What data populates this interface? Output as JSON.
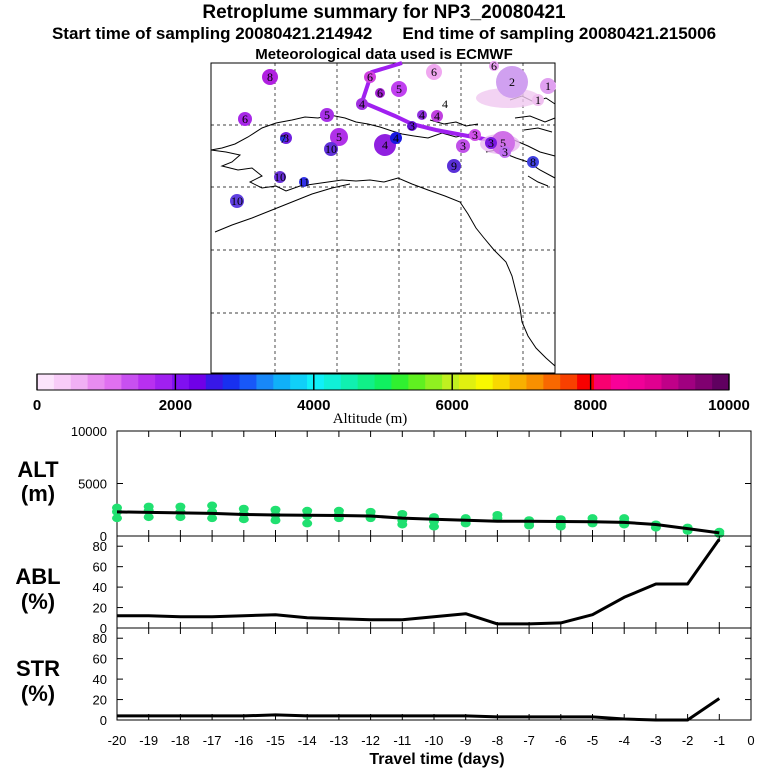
{
  "header": {
    "title": "Retroplume summary for NP3_20080421",
    "start_time": "Start time of sampling 20080421.214942",
    "end_time": "End time of sampling 20080421.215006",
    "met_data": "Meteorological data used is ECMWF"
  },
  "map": {
    "plume_color": "#a020f0",
    "markers": [
      {
        "label": "8",
        "color": "#b020e0"
      },
      {
        "label": "6",
        "color": "#d040e0"
      },
      {
        "label": "6",
        "color": "#f0a8f0"
      },
      {
        "label": "6",
        "color": "#a020d0"
      },
      {
        "label": "5",
        "color": "#c040f0"
      },
      {
        "label": "6",
        "color": "#e8a0f0"
      },
      {
        "label": "6",
        "color": "#a828e8"
      },
      {
        "label": "5",
        "color": "#a830e8"
      },
      {
        "label": "4",
        "color": "#ffffff"
      },
      {
        "label": "4",
        "color": "#9030e0"
      },
      {
        "label": "4",
        "color": "#c040e0"
      },
      {
        "label": "4",
        "color": "#a030e0"
      },
      {
        "label": "5",
        "color": "#b030e8"
      },
      {
        "label": "4",
        "color": "#9020e0"
      },
      {
        "label": "3",
        "color": "#6010d0"
      },
      {
        "label": "4",
        "color": "#1818e0"
      },
      {
        "label": "3",
        "color": "#d050e8"
      },
      {
        "label": "3",
        "color": "#c050e8"
      },
      {
        "label": "5",
        "color": "#d070e8"
      },
      {
        "label": "3",
        "color": "#7a18e0"
      },
      {
        "label": "10",
        "color": "#6040e0"
      },
      {
        "label": "8",
        "color": "#7020e0"
      },
      {
        "label": "10",
        "color": "#6030d8"
      },
      {
        "label": "11",
        "color": "#3030e8"
      },
      {
        "label": "10",
        "color": "#6830d8"
      },
      {
        "label": "9",
        "color": "#5a30d8"
      },
      {
        "label": "8",
        "color": "#4040e0"
      },
      {
        "label": "2",
        "color": "#d0a0f0"
      },
      {
        "label": "1",
        "color": "#f0c0f0"
      },
      {
        "label": "1",
        "color": "#e0a0f0"
      },
      {
        "label": "3",
        "color": "#c070f0"
      },
      {
        "label": "7",
        "color": "#2838e0"
      }
    ]
  },
  "colorbar": {
    "title": "Altitude (m)",
    "tick_labels": [
      "0",
      "2000",
      "4000",
      "6000",
      "8000",
      "10000"
    ],
    "colors": [
      "#fce4fc",
      "#f8ccf8",
      "#f0b0f4",
      "#e88cf0",
      "#e070f0",
      "#c850f0",
      "#b830f0",
      "#a020f0",
      "#8010f0",
      "#7000e8",
      "#3818e8",
      "#1830f0",
      "#1858f8",
      "#1888f8",
      "#10b0f8",
      "#10d0f8",
      "#10f0f8",
      "#10f0d8",
      "#10f0b0",
      "#10f088",
      "#10f060",
      "#30f030",
      "#60f020",
      "#90f020",
      "#c0f020",
      "#e0f010",
      "#f8f800",
      "#f8d800",
      "#f8b000",
      "#f89000",
      "#f86800",
      "#f84000",
      "#f80000",
      "#f80070",
      "#f80098",
      "#f00098",
      "#e00090",
      "#c00088",
      "#a00080",
      "#800070",
      "#600060"
    ]
  },
  "chart_data": [
    {
      "type": "line",
      "title": "ALT (m)",
      "panel_label_top": "ALT",
      "panel_label_bottom": "(m)",
      "xlabel": "Travel time (days)",
      "xlim": [
        -20,
        0
      ],
      "ylim": [
        0,
        10000
      ],
      "yticks": [
        "0",
        "5000",
        "10000"
      ],
      "x": [
        -20,
        -19,
        -18,
        -17,
        -16,
        -15,
        -14,
        -13,
        -12,
        -11,
        -10,
        -9,
        -8,
        -7,
        -6,
        -5,
        -4,
        -3,
        -2,
        -1
      ],
      "series": [
        {
          "name": "mean altitude",
          "values": [
            2300,
            2250,
            2200,
            2150,
            2050,
            2000,
            1980,
            1950,
            1900,
            1700,
            1600,
            1500,
            1400,
            1400,
            1380,
            1350,
            1300,
            1100,
            700,
            300
          ]
        }
      ],
      "scatter": [
        {
          "x": -20,
          "values": [
            1700,
            2300,
            2700
          ]
        },
        {
          "x": -19,
          "values": [
            1800,
            2400,
            2800
          ]
        },
        {
          "x": -18,
          "values": [
            1800,
            2300,
            2800
          ]
        },
        {
          "x": -17,
          "values": [
            1700,
            2300,
            2900
          ]
        },
        {
          "x": -16,
          "values": [
            1600,
            2100,
            2600
          ]
        },
        {
          "x": -15,
          "values": [
            1500,
            2000,
            2500
          ]
        },
        {
          "x": -14,
          "values": [
            1200,
            1900,
            2400
          ]
        },
        {
          "x": -13,
          "values": [
            1700,
            2000,
            2400
          ]
        },
        {
          "x": -12,
          "values": [
            1700,
            1900,
            2300
          ]
        },
        {
          "x": -11,
          "values": [
            1100,
            1500,
            2100
          ]
        },
        {
          "x": -10,
          "values": [
            900,
            1400,
            1800
          ]
        },
        {
          "x": -9,
          "values": [
            1200,
            1500,
            1700
          ]
        },
        {
          "x": -8,
          "values": [
            1700,
            2000
          ]
        },
        {
          "x": -7,
          "values": [
            1000,
            1300,
            1500
          ]
        },
        {
          "x": -6,
          "values": [
            900,
            1100,
            1400,
            1600
          ]
        },
        {
          "x": -5,
          "values": [
            1200,
            1400,
            1700
          ]
        },
        {
          "x": -4,
          "values": [
            1100,
            1400,
            1700
          ]
        },
        {
          "x": -3,
          "values": [
            800,
            1100
          ]
        },
        {
          "x": -2,
          "values": [
            500,
            800
          ]
        },
        {
          "x": -1,
          "values": [
            200,
            400
          ]
        }
      ]
    },
    {
      "type": "line",
      "title": "ABL (%)",
      "panel_label_top": "ABL",
      "panel_label_bottom": "(%)",
      "xlim": [
        -20,
        0
      ],
      "ylim": [
        0,
        90
      ],
      "yticks": [
        "0",
        "20",
        "40",
        "60",
        "80"
      ],
      "x": [
        -20,
        -19,
        -18,
        -17,
        -16,
        -15,
        -14,
        -13,
        -12,
        -11,
        -10,
        -9,
        -8,
        -7,
        -6,
        -5,
        -4,
        -3,
        -2,
        -1
      ],
      "series": [
        {
          "name": "ABL fraction",
          "values": [
            12,
            12,
            11,
            11,
            12,
            13,
            10,
            9,
            8,
            8,
            11,
            14,
            4,
            4,
            5,
            13,
            30,
            43,
            43,
            87
          ]
        }
      ]
    },
    {
      "type": "line",
      "title": "STR (%)",
      "panel_label_top": "STR",
      "panel_label_bottom": "(%)",
      "xlabel": "Travel time (days)",
      "xlim": [
        -20,
        0
      ],
      "ylim": [
        0,
        90
      ],
      "yticks": [
        "0",
        "20",
        "40",
        "60",
        "80"
      ],
      "xticks": [
        "-20",
        "-19",
        "-18",
        "-17",
        "-16",
        "-15",
        "-14",
        "-13",
        "-12",
        "-11",
        "-10",
        "-9",
        "-8",
        "-7",
        "-6",
        "-5",
        "-4",
        "-3",
        "-2",
        "-1",
        "0"
      ],
      "x": [
        -20,
        -19,
        -18,
        -17,
        -16,
        -15,
        -14,
        -13,
        -12,
        -11,
        -10,
        -9,
        -8,
        -7,
        -6,
        -5,
        -4,
        -3,
        -2,
        -1
      ],
      "series": [
        {
          "name": "stratosphere fraction",
          "values": [
            4,
            4,
            4,
            4,
            4,
            5,
            4,
            4,
            4,
            4,
            4,
            4,
            3,
            3,
            3,
            3,
            1,
            0,
            0,
            21
          ]
        }
      ]
    }
  ]
}
